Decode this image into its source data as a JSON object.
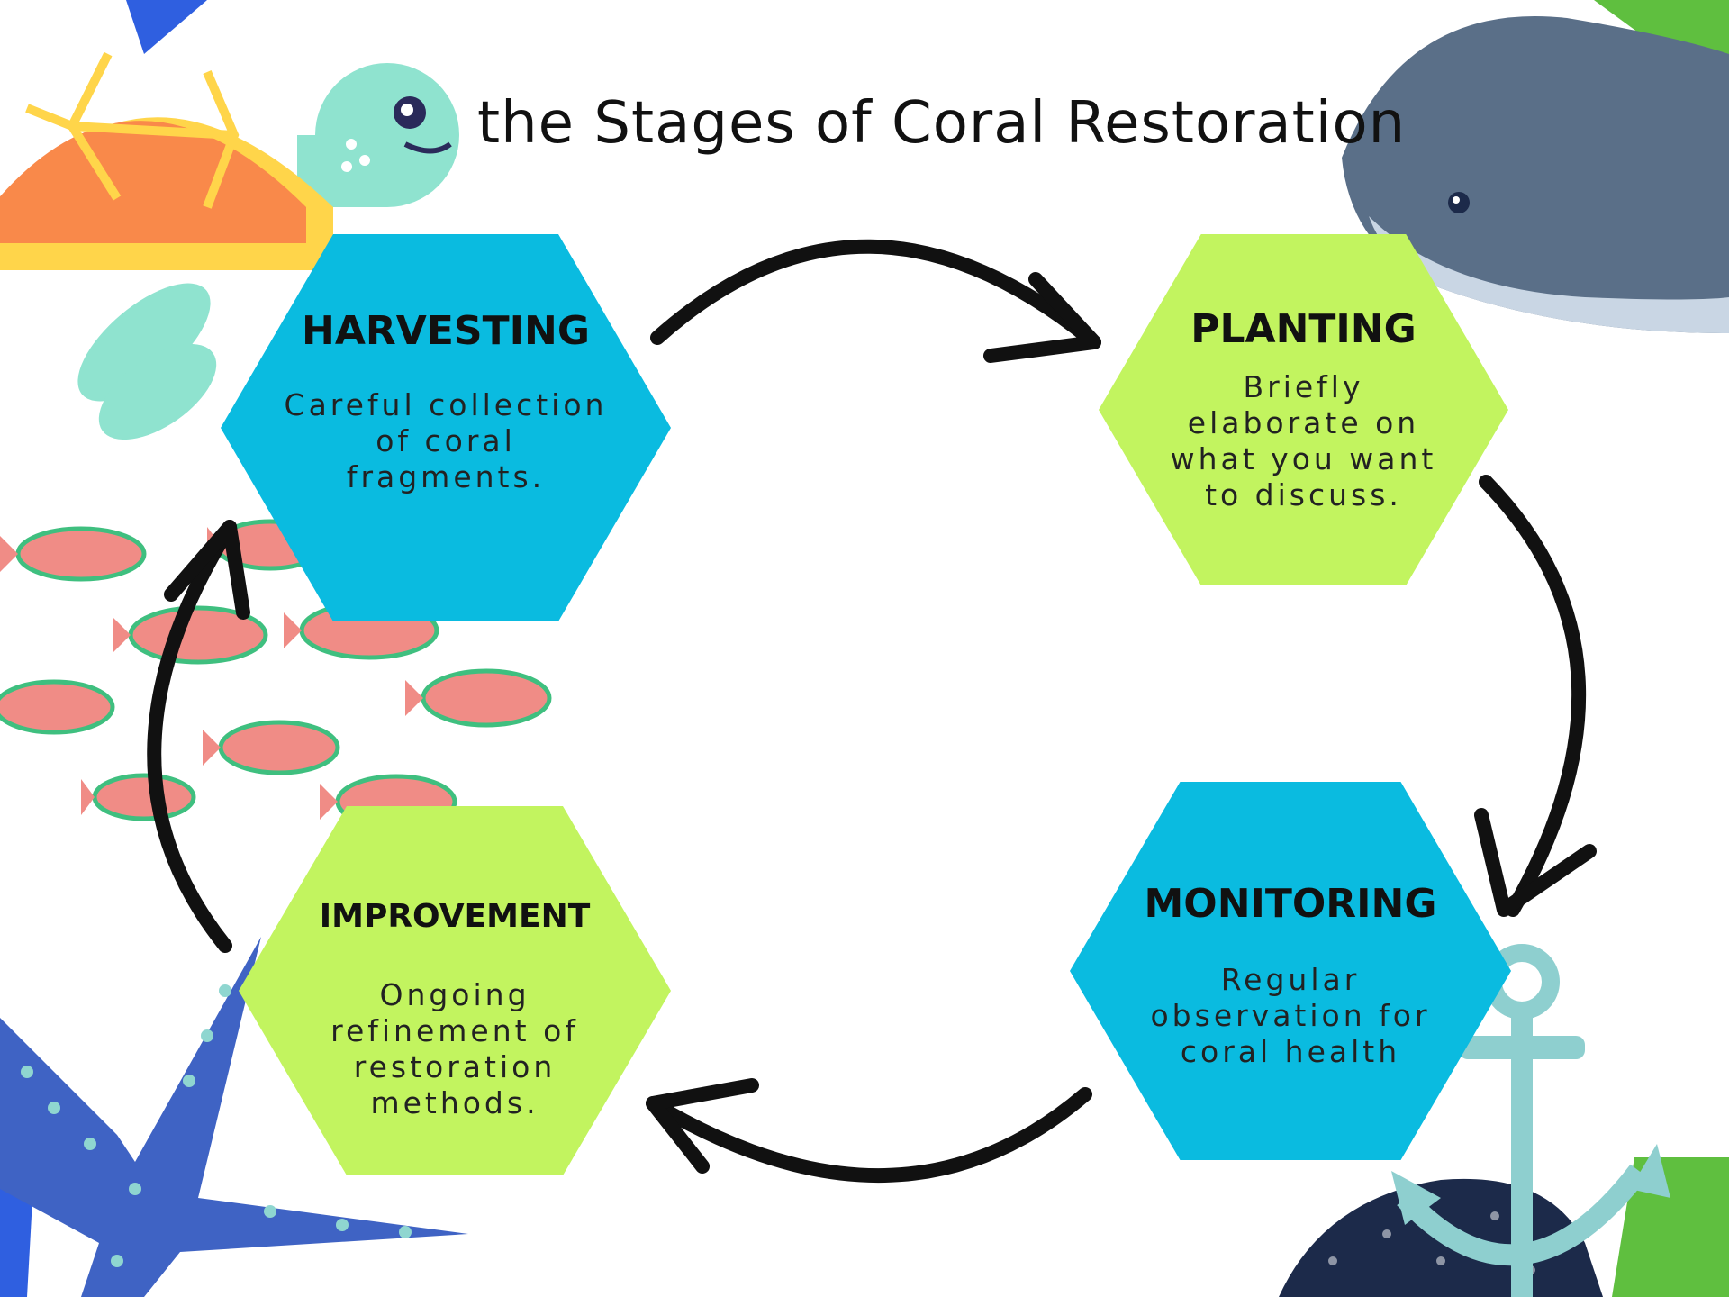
{
  "title": "the Stages of Coral Restoration",
  "stages": [
    {
      "name": "HARVESTING",
      "description": "Careful collection of coral fragments.",
      "color": "#0abbe0"
    },
    {
      "name": "PLANTING",
      "description": "Briefly elaborate on what you want to discuss.",
      "color": "#c2f45f"
    },
    {
      "name": "MONITORING",
      "description": "Regular observation for coral health",
      "color": "#0abbe0"
    },
    {
      "name": "IMPROVEMENT",
      "description": "Ongoing refinement of restoration methods.",
      "color": "#c2f45f"
    }
  ],
  "colors": {
    "turtle_shell": "#f9894a",
    "turtle_rim": "#ffd54a",
    "turtle_skin": "#8fe3cf",
    "fish_body": "#f08c86",
    "fish_stripe": "#3fbf7f",
    "starfish": "#3f63c4",
    "starfish_dots": "#8fd6d0",
    "ray": "#5a6f88",
    "ray_belly": "#c9d6e4",
    "anchor": "#8ecfcf",
    "rock": "#1c2a4a",
    "corner_blue": "#2f5fe0",
    "corner_green": "#5fbf3f"
  }
}
